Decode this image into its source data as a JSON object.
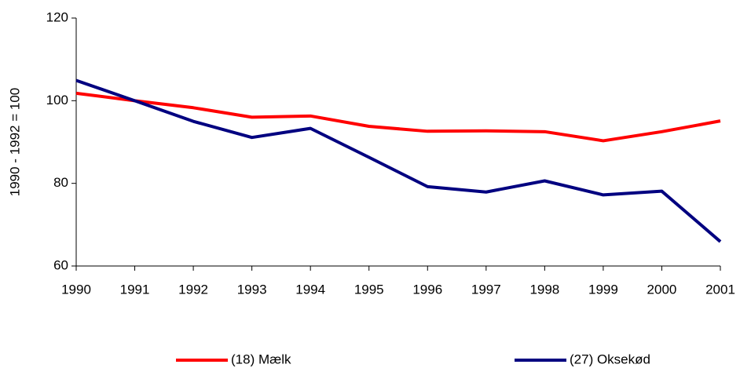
{
  "chart_data": {
    "type": "line",
    "y_label": "1990 - 1992 = 100",
    "categories": [
      "1990",
      "1991",
      "1992",
      "1993",
      "1994",
      "1995",
      "1996",
      "1997",
      "1998",
      "1999",
      "2000",
      "2001"
    ],
    "series": [
      {
        "name": "(18) Mælk",
        "color": "#ff0000",
        "values": [
          101.8,
          100,
          98.3,
          96,
          96.3,
          93.8,
          92.6,
          92.7,
          92.5,
          90.3,
          92.5,
          95.1
        ]
      },
      {
        "name": "(27) Oksekød",
        "color": "#000080",
        "values": [
          104.9,
          100,
          95,
          91.1,
          93.3,
          86.3,
          79.2,
          77.9,
          80.6,
          77.2,
          78.1,
          65.9
        ]
      }
    ],
    "ylim": [
      60,
      120
    ],
    "yticks": [
      60,
      80,
      100,
      120
    ],
    "grid": false,
    "legend": "bottom"
  }
}
